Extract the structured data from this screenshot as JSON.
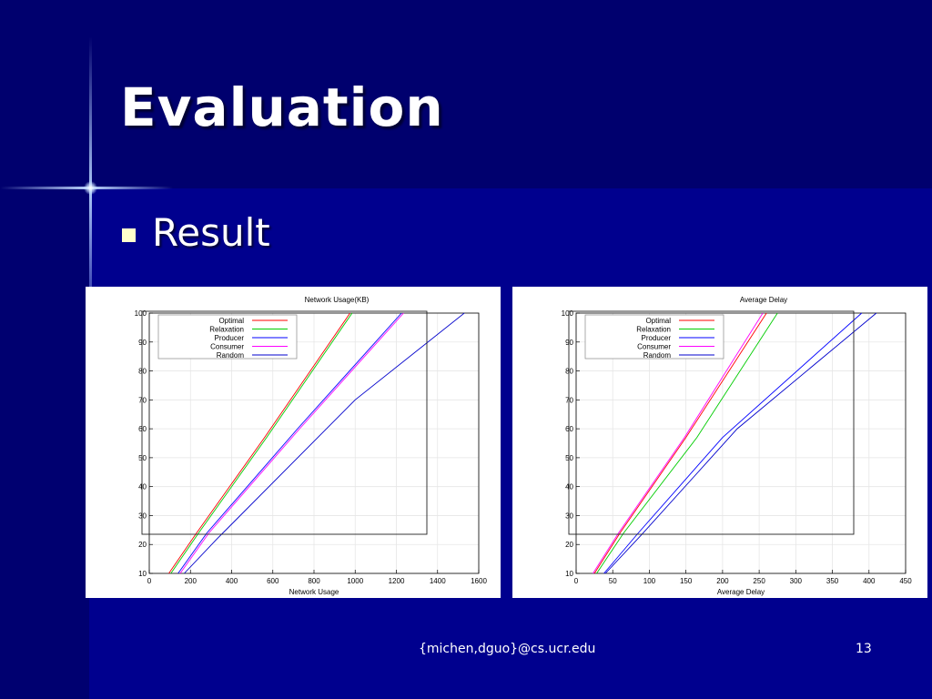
{
  "slide": {
    "title": "Evaluation",
    "bullet": "Result",
    "footer": "{michen,dguo}@cs.ucr.edu",
    "page_number": "13"
  },
  "colors": {
    "Optimal": "#ff0000",
    "Relaxation": "#00cc00",
    "Producer": "#0000ff",
    "Consumer": "#ff00ff",
    "Random": "#0000cc"
  },
  "chart_data": [
    {
      "type": "line",
      "title": "Network Usage(KB)",
      "xlabel": "Network Usage",
      "ylabel": "",
      "xlim": [
        0,
        1600
      ],
      "ylim": [
        10,
        100
      ],
      "xticks": [
        0,
        200,
        400,
        600,
        800,
        1000,
        1200,
        1400,
        1600
      ],
      "yticks": [
        10,
        20,
        30,
        40,
        50,
        60,
        70,
        80,
        90,
        100
      ],
      "grid": true,
      "legend_position": "top-left",
      "series": [
        {
          "name": "Optimal",
          "color": "#ff0000",
          "points": [
            [
              95,
              10
            ],
            [
              230,
              24
            ],
            [
              560,
              57
            ],
            [
              975,
              100
            ]
          ]
        },
        {
          "name": "Relaxation",
          "color": "#00cc00",
          "points": [
            [
              105,
              10
            ],
            [
              240,
              24
            ],
            [
              570,
              57
            ],
            [
              985,
              100
            ]
          ]
        },
        {
          "name": "Producer",
          "color": "#0000ff",
          "points": [
            [
              140,
              10
            ],
            [
              280,
              24
            ],
            [
              720,
              60
            ],
            [
              1225,
              100
            ]
          ]
        },
        {
          "name": "Consumer",
          "color": "#ff00ff",
          "points": [
            [
              150,
              10
            ],
            [
              290,
              24
            ],
            [
              730,
              60
            ],
            [
              1235,
              100
            ]
          ]
        },
        {
          "name": "Random",
          "color": "#0000cc",
          "points": [
            [
              170,
              10
            ],
            [
              330,
              22
            ],
            [
              1000,
              70
            ],
            [
              1530,
              100
            ]
          ]
        }
      ]
    },
    {
      "type": "line",
      "title": "Average Delay",
      "xlabel": "Average Delay",
      "ylabel": "",
      "xlim": [
        0,
        450
      ],
      "ylim": [
        10,
        100
      ],
      "xticks": [
        0,
        50,
        100,
        150,
        200,
        250,
        300,
        350,
        400,
        450
      ],
      "yticks": [
        10,
        20,
        30,
        40,
        50,
        60,
        70,
        80,
        90,
        100
      ],
      "grid": true,
      "legend_position": "top-left",
      "series": [
        {
          "name": "Optimal",
          "color": "#ff0000",
          "points": [
            [
              25,
              10
            ],
            [
              60,
              24
            ],
            [
              150,
              57
            ],
            [
              260,
              100
            ]
          ]
        },
        {
          "name": "Relaxation",
          "color": "#00cc00",
          "points": [
            [
              28,
              10
            ],
            [
              65,
              24
            ],
            [
              165,
              57
            ],
            [
              275,
              100
            ]
          ]
        },
        {
          "name": "Producer",
          "color": "#0000ff",
          "points": [
            [
              38,
              10
            ],
            [
              85,
              24
            ],
            [
              200,
              57
            ],
            [
              390,
              100
            ]
          ]
        },
        {
          "name": "Consumer",
          "color": "#ff00ff",
          "points": [
            [
              23,
              10
            ],
            [
              58,
              24
            ],
            [
              148,
              57
            ],
            [
              255,
              100
            ]
          ]
        },
        {
          "name": "Random",
          "color": "#0000cc",
          "points": [
            [
              40,
              10
            ],
            [
              88,
              23
            ],
            [
              220,
              60
            ],
            [
              410,
              100
            ]
          ]
        }
      ]
    }
  ]
}
